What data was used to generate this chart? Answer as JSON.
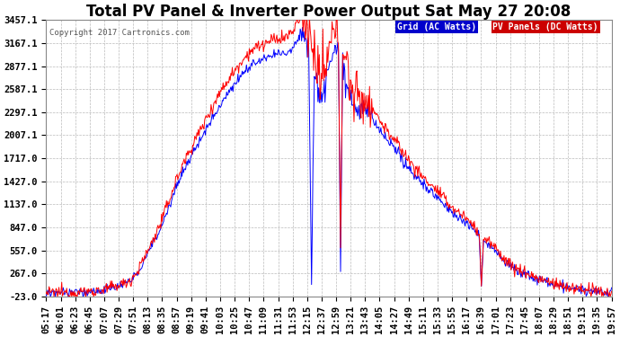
{
  "title": "Total PV Panel & Inverter Power Output Sat May 27 20:08",
  "copyright": "Copyright 2017 Cartronics.com",
  "legend_items": [
    "Grid (AC Watts)",
    "PV Panels (DC Watts)"
  ],
  "legend_bg": [
    "#0000cc",
    "#cc0000"
  ],
  "ylim": [
    -23.0,
    3457.1
  ],
  "yticks": [
    -23.0,
    267.0,
    557.0,
    847.0,
    1137.0,
    1427.0,
    1717.0,
    2007.1,
    2297.1,
    2587.1,
    2877.1,
    3167.1,
    3457.1
  ],
  "xlabel_times": [
    "05:17",
    "06:01",
    "06:23",
    "06:45",
    "07:07",
    "07:29",
    "07:51",
    "08:13",
    "08:35",
    "08:57",
    "09:19",
    "09:41",
    "10:03",
    "10:25",
    "10:47",
    "11:09",
    "11:31",
    "11:53",
    "12:15",
    "12:37",
    "12:59",
    "13:21",
    "13:43",
    "14:05",
    "14:27",
    "14:49",
    "15:11",
    "15:33",
    "15:55",
    "16:17",
    "16:39",
    "17:01",
    "17:23",
    "17:45",
    "18:07",
    "18:29",
    "18:51",
    "19:13",
    "19:35",
    "19:57"
  ],
  "bg_color": "#ffffff",
  "grid_color": "#bbbbbb",
  "line_blue": "#0000ff",
  "line_red": "#ff0000",
  "title_fontsize": 12,
  "tick_fontsize": 7.5,
  "copyright_fontsize": 6.5
}
